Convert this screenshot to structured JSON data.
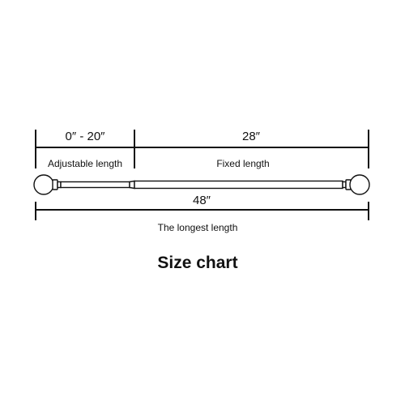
{
  "diagram": {
    "segments": {
      "adjustable": {
        "value": "0″ - 20″",
        "label": "Adjustable length"
      },
      "fixed": {
        "value": "28″",
        "label": "Fixed length"
      },
      "total": {
        "value": "48″",
        "label": "The longest length"
      }
    },
    "title": "Size chart"
  },
  "colors": {
    "line": "#111111",
    "rod_fill": "#ffffff",
    "background": "#ffffff"
  }
}
